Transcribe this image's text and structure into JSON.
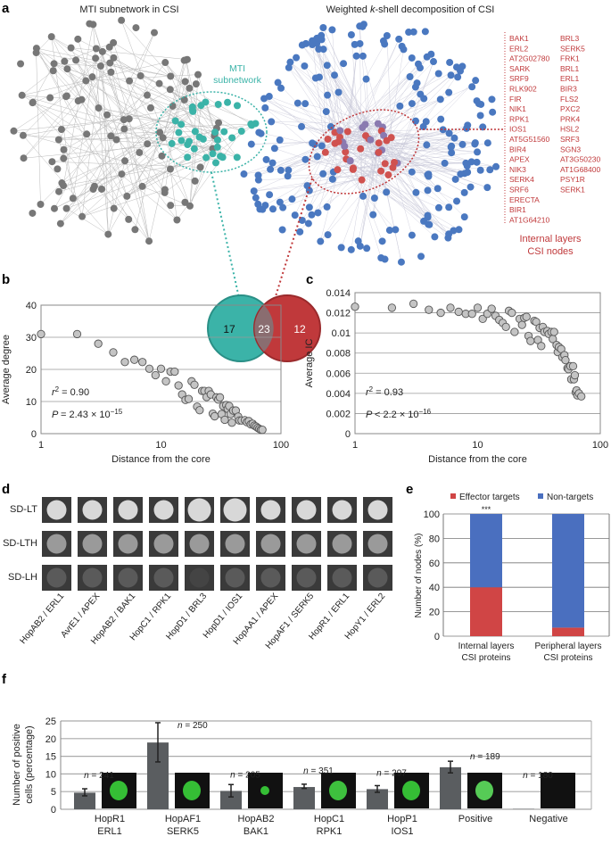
{
  "panel_labels": {
    "a": "a",
    "b": "b",
    "c": "c",
    "d": "d",
    "e": "e",
    "f": "f"
  },
  "panel_a": {
    "left_title": "MTI subnetwork in CSI",
    "right_title_pre": "Weighted ",
    "right_title_k": "k",
    "right_title_post": "-shell decomposition of CSI",
    "mti_label_line1": "MTI",
    "mti_label_line2": "subnetwork",
    "venn": {
      "left_only": "17",
      "overlap": "23",
      "right_only": "12"
    },
    "internal_nodes_col1": [
      "BAK1",
      "ERL2",
      "AT2G02780",
      "SARK",
      "SRF9",
      "RLK902",
      "FIR",
      "NIK1",
      "RPK1",
      "IOS1",
      "AT5G51560",
      "BIR4",
      "APEX",
      "NIK3",
      "SERK4",
      "SRF6",
      "ERECTA",
      "BIR1",
      "AT1G64210"
    ],
    "internal_nodes_col2": [
      "BRL3",
      "SERK5",
      "FRK1",
      "BRL1",
      "ERL1",
      "BIR3",
      "FLS2",
      "PXC2",
      "PRK4",
      "HSL2",
      "SRF3",
      "SGN3",
      "AT3G50230",
      "AT1G68400",
      "PSY1R",
      "SERK1"
    ],
    "internal_caption_line1": "Internal layers",
    "internal_caption_line2": "CSI nodes",
    "colors": {
      "gray_nodes": "#777777",
      "mti": "#3bb3a8",
      "kshell_outer": "#4a78c0",
      "kshell_core": "#d0524f",
      "accent_red": "#c0393b"
    }
  },
  "chart_data": [
    {
      "id": "b",
      "type": "scatter",
      "xlabel": "Distance from the core",
      "ylabel": "Average degree",
      "x_scale": "log",
      "xlim": [
        1,
        100
      ],
      "ylim": [
        0,
        40
      ],
      "xticks": [
        "1",
        "10",
        "100"
      ],
      "yticks": [
        "0",
        "10",
        "20",
        "30",
        "40"
      ],
      "grid": true,
      "annotation_r2": "= 0.90",
      "annotation_p": "= 2.43 × 10",
      "annotation_p_exp": "−15",
      "points": [
        [
          1,
          31
        ],
        [
          2,
          31
        ],
        [
          3,
          28
        ],
        [
          4,
          25.3
        ],
        [
          5,
          22.3
        ],
        [
          6,
          23
        ],
        [
          7,
          22.3
        ],
        [
          8,
          20.2
        ],
        [
          9,
          18.2
        ],
        [
          10,
          20.2
        ],
        [
          11,
          16.3
        ],
        [
          12,
          19.3
        ],
        [
          13,
          19.3
        ],
        [
          14,
          15
        ],
        [
          15,
          12.2
        ],
        [
          16,
          10.5
        ],
        [
          17,
          10.8
        ],
        [
          18,
          16.3
        ],
        [
          19,
          15.2
        ],
        [
          20,
          8.4
        ],
        [
          21,
          7.3
        ],
        [
          22,
          13.3
        ],
        [
          23,
          13.3
        ],
        [
          24,
          11.4
        ],
        [
          25,
          13.3
        ],
        [
          26,
          12.2
        ],
        [
          27,
          6.2
        ],
        [
          28,
          5.4
        ],
        [
          29,
          11.3
        ],
        [
          30,
          10.6
        ],
        [
          31,
          11.3
        ],
        [
          32,
          6.1
        ],
        [
          33,
          8.6
        ],
        [
          34,
          4.3
        ],
        [
          35,
          8.9
        ],
        [
          36,
          7.7
        ],
        [
          37,
          8.6
        ],
        [
          38,
          6.1
        ],
        [
          39,
          3.4
        ],
        [
          40,
          7.2
        ],
        [
          42,
          7.2
        ],
        [
          44,
          5.3
        ],
        [
          45,
          4.1
        ],
        [
          47,
          4.1
        ],
        [
          50,
          4.2
        ],
        [
          52,
          3.6
        ],
        [
          54,
          3.9
        ],
        [
          56,
          2.9
        ],
        [
          58,
          3.1
        ],
        [
          60,
          2.5
        ],
        [
          62,
          2.2
        ],
        [
          64,
          1.8
        ],
        [
          66,
          1.5
        ],
        [
          68,
          1.2
        ],
        [
          70,
          1.2
        ]
      ]
    },
    {
      "id": "c",
      "type": "scatter",
      "xlabel": "Distance from the core",
      "ylabel": "Average IC",
      "x_scale": "log",
      "xlim": [
        1,
        100
      ],
      "ylim": [
        0,
        0.014
      ],
      "xticks": [
        "1",
        "10",
        "100"
      ],
      "yticks": [
        "0",
        "0.002",
        "0.004",
        "0.006",
        "0.008",
        "0.01",
        "0.012",
        "0.014"
      ],
      "grid": true,
      "annotation_r2": "= 0.93",
      "annotation_p": "< 2.2 × 10",
      "annotation_p_exp": "−16",
      "points": [
        [
          1,
          0.0126
        ],
        [
          2,
          0.0125
        ],
        [
          3,
          0.0129
        ],
        [
          4,
          0.0123
        ],
        [
          5,
          0.012
        ],
        [
          6,
          0.0125
        ],
        [
          7,
          0.0121
        ],
        [
          8,
          0.0119
        ],
        [
          9,
          0.0119
        ],
        [
          10,
          0.0125
        ],
        [
          11,
          0.0114
        ],
        [
          12,
          0.0119
        ],
        [
          13,
          0.0124
        ],
        [
          14,
          0.0117
        ],
        [
          15,
          0.0113
        ],
        [
          16,
          0.011
        ],
        [
          17,
          0.0106
        ],
        [
          18,
          0.0122
        ],
        [
          19,
          0.012
        ],
        [
          20,
          0.0101
        ],
        [
          22,
          0.0114
        ],
        [
          23,
          0.0108
        ],
        [
          24,
          0.0115
        ],
        [
          25,
          0.0116
        ],
        [
          26,
          0.0097
        ],
        [
          27,
          0.0092
        ],
        [
          29,
          0.0112
        ],
        [
          30,
          0.0111
        ],
        [
          31,
          0.0093
        ],
        [
          32,
          0.0105
        ],
        [
          33,
          0.0087
        ],
        [
          34,
          0.0106
        ],
        [
          35,
          0.0101
        ],
        [
          37,
          0.0102
        ],
        [
          38,
          0.0099
        ],
        [
          40,
          0.0101
        ],
        [
          41,
          0.0094
        ],
        [
          42,
          0.0101
        ],
        [
          44,
          0.0088
        ],
        [
          45,
          0.0081
        ],
        [
          46,
          0.0086
        ],
        [
          48,
          0.0084
        ],
        [
          49,
          0.0076
        ],
        [
          51,
          0.0078
        ],
        [
          52,
          0.0073
        ],
        [
          54,
          0.0065
        ],
        [
          55,
          0.0064
        ],
        [
          57,
          0.0067
        ],
        [
          58,
          0.0054
        ],
        [
          60,
          0.0067
        ],
        [
          61,
          0.0054
        ],
        [
          62,
          0.0058
        ],
        [
          63,
          0.0041
        ],
        [
          64,
          0.0043
        ],
        [
          65,
          0.0038
        ],
        [
          67,
          0.004
        ],
        [
          70,
          0.0037
        ]
      ]
    },
    {
      "id": "e",
      "type": "bar",
      "stacked": true,
      "ylabel": "Number of nodes (%)",
      "ylim": [
        0,
        100
      ],
      "yticks": [
        "0",
        "20",
        "40",
        "60",
        "80",
        "100"
      ],
      "categories": [
        [
          "Internal layers",
          "CSI proteins"
        ],
        [
          "Peripheral layers",
          "CSI proteins"
        ]
      ],
      "series": [
        {
          "name": "Effector targets",
          "color": "#d04545",
          "values": [
            40,
            7
          ]
        },
        {
          "name": "Non-targets",
          "color": "#4a6fbf",
          "values": [
            60,
            93
          ]
        }
      ],
      "significance": [
        "***",
        ""
      ],
      "legend": "top"
    },
    {
      "id": "f",
      "type": "bar",
      "ylabel_line1": "Number of positive",
      "ylabel_line2": "cells (percentage)",
      "ylim": [
        0,
        25
      ],
      "yticks": [
        "0",
        "5",
        "10",
        "15",
        "20",
        "25"
      ],
      "grid": true,
      "categories": [
        [
          "HopR1",
          "ERL1"
        ],
        [
          "HopAF1",
          "SERK5"
        ],
        [
          "HopAB2",
          "BAK1"
        ],
        [
          "HopC1",
          "RPK1"
        ],
        [
          "HopP1",
          "IOS1"
        ],
        [
          "Positive",
          ""
        ],
        [
          "Negative",
          ""
        ]
      ],
      "values": [
        4.7,
        18.9,
        5.2,
        6.3,
        5.7,
        11.9,
        0.1
      ],
      "error_low": [
        3.8,
        13.4,
        3.5,
        5.9,
        4.8,
        10.3,
        null
      ],
      "error_high": [
        5.8,
        24.5,
        7.0,
        7.1,
        6.7,
        13.6,
        null
      ],
      "n_labels": [
        "241",
        "250",
        "205",
        "351",
        "297",
        "189",
        "180"
      ],
      "n_prefix": "n",
      "bar_color": "#5a5d60"
    }
  ],
  "panel_d": {
    "rows": [
      "SD-LT",
      "SD-LTH",
      "SD-LH"
    ],
    "columns": [
      "HopAB2 / ERL1",
      "AvrE1 / APEX",
      "HopAB2 / BAK1",
      "HopC1 / RPK1",
      "HopD1 / BRL3",
      "HopD1 / IOS1",
      "HopAA1 / APEX",
      "HopAF1 / SERK5",
      "HopR1 / ERL1",
      "HopY1 / ERL2"
    ]
  }
}
